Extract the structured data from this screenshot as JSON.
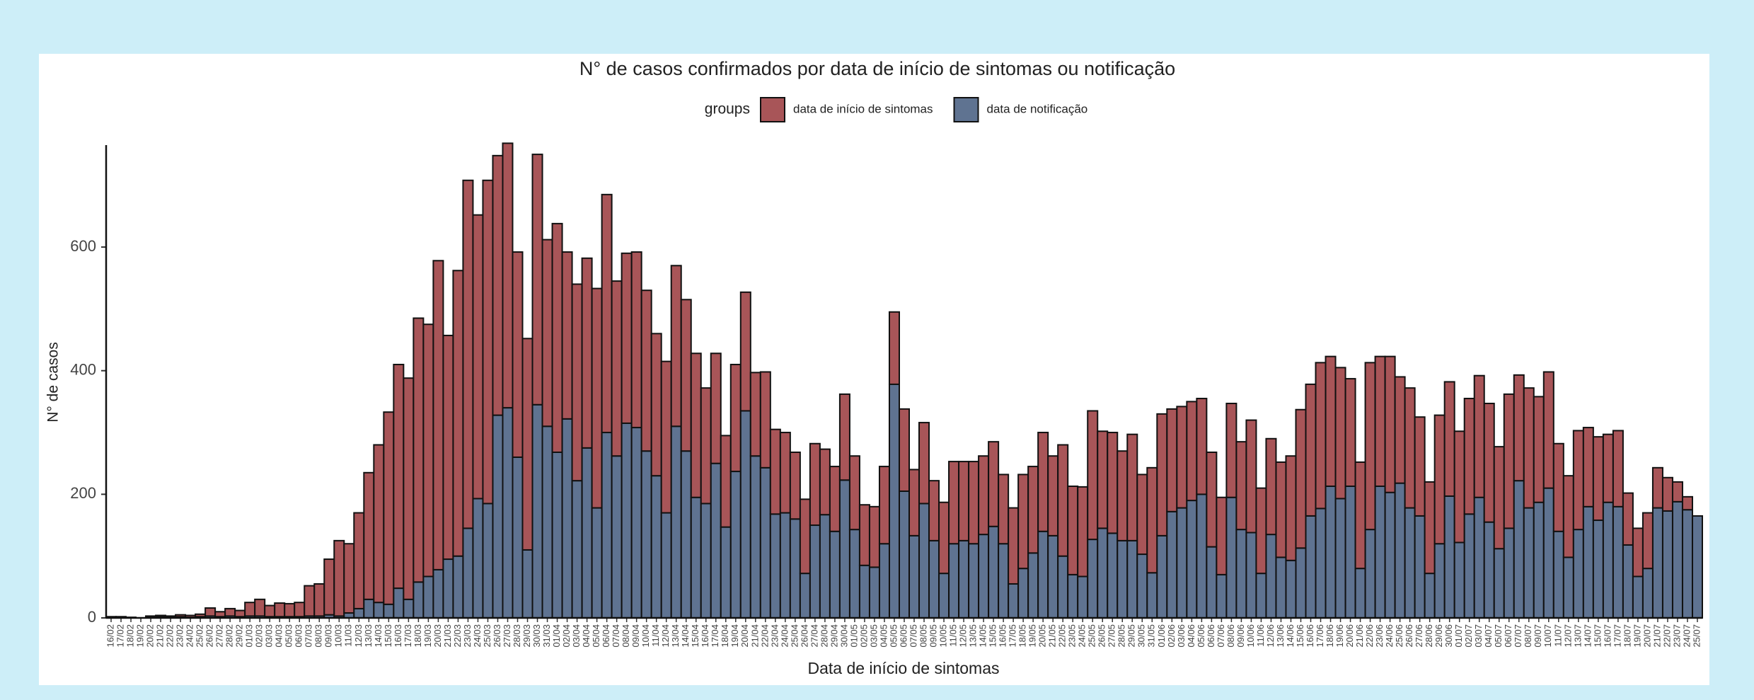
{
  "chart_data": {
    "type": "bar",
    "stacked": true,
    "title": "N° de casos confirmados por data de início de sintomas ou notificação",
    "legend_title": "groups",
    "xlabel": "Data de início de sintomas",
    "ylabel": "N° de casos",
    "ylim": [
      0,
      765
    ],
    "yticks": [
      0,
      200,
      400,
      600
    ],
    "categories": [
      "16/02",
      "17/02",
      "18/02",
      "19/02",
      "20/02",
      "21/02",
      "22/02",
      "23/02",
      "24/02",
      "25/02",
      "26/02",
      "27/02",
      "28/02",
      "29/02",
      "01/03",
      "02/03",
      "03/03",
      "04/03",
      "05/03",
      "06/03",
      "07/03",
      "08/03",
      "09/03",
      "10/03",
      "11/03",
      "12/03",
      "13/03",
      "14/03",
      "15/03",
      "16/03",
      "17/03",
      "18/03",
      "19/03",
      "20/03",
      "21/03",
      "22/03",
      "23/03",
      "24/03",
      "25/03",
      "26/03",
      "27/03",
      "28/03",
      "29/03",
      "30/03",
      "31/03",
      "01/04",
      "02/04",
      "03/04",
      "04/04",
      "05/04",
      "06/04",
      "07/04",
      "08/04",
      "09/04",
      "10/04",
      "11/04",
      "12/04",
      "13/04",
      "14/04",
      "15/04",
      "16/04",
      "17/04",
      "18/04",
      "19/04",
      "20/04",
      "21/04",
      "22/04",
      "23/04",
      "24/04",
      "25/04",
      "26/04",
      "27/04",
      "28/04",
      "29/04",
      "30/04",
      "01/05",
      "02/05",
      "03/05",
      "04/05",
      "05/05",
      "06/05",
      "07/05",
      "08/05",
      "09/05",
      "10/05",
      "11/05",
      "12/05",
      "13/05",
      "14/05",
      "15/05",
      "16/05",
      "17/05",
      "18/05",
      "19/05",
      "20/05",
      "21/05",
      "22/05",
      "23/05",
      "24/05",
      "25/05",
      "26/05",
      "27/05",
      "28/05",
      "29/05",
      "30/05",
      "31/05",
      "01/06",
      "02/06",
      "03/06",
      "04/06",
      "05/06",
      "06/06",
      "07/06",
      "08/06",
      "09/06",
      "10/06",
      "11/06",
      "12/06",
      "13/06",
      "14/06",
      "15/06",
      "16/06",
      "17/06",
      "18/06",
      "19/06",
      "20/06",
      "21/06",
      "22/06",
      "23/06",
      "24/06",
      "25/06",
      "26/06",
      "27/06",
      "28/06",
      "29/06",
      "30/06",
      "01/07",
      "02/07",
      "03/07",
      "04/07",
      "05/07",
      "06/07",
      "07/07",
      "08/07",
      "09/07",
      "10/07",
      "11/07",
      "12/07",
      "13/07",
      "14/07",
      "15/07",
      "16/07",
      "17/07",
      "18/07",
      "19/07",
      "20/07",
      "21/07",
      "22/07",
      "23/07",
      "24/07",
      "25/07"
    ],
    "series": [
      {
        "name": "data de início de sintomas",
        "color": "#a85558",
        "values": [
          1,
          2,
          1,
          0,
          2,
          2,
          2,
          3,
          3,
          4,
          13,
          8,
          12,
          10,
          22,
          27,
          18,
          22,
          21,
          23,
          49,
          52,
          90,
          122,
          112,
          155,
          205,
          255,
          311,
          362,
          358,
          427,
          408,
          500,
          362,
          462,
          563,
          459,
          523,
          420,
          428,
          332,
          342,
          405,
          302,
          370,
          270,
          318,
          307,
          355,
          385,
          283,
          275,
          284,
          260,
          230,
          245,
          260,
          245,
          233,
          187,
          178,
          148,
          173,
          192,
          135,
          155,
          137,
          130,
          108,
          120,
          132,
          106,
          105,
          139,
          119,
          98,
          98,
          125,
          117,
          133,
          107,
          131,
          97,
          115,
          133,
          128,
          133,
          127,
          137,
          112,
          123,
          152,
          140,
          160,
          129,
          180,
          143,
          145,
          208,
          157,
          163,
          145,
          172,
          129,
          170,
          197,
          166,
          164,
          160,
          155,
          153,
          125,
          152,
          142,
          182,
          138,
          155,
          154,
          169,
          224,
          213,
          236,
          210,
          212,
          174,
          172,
          270,
          210,
          220,
          172,
          194,
          160,
          148,
          208,
          185,
          180,
          187,
          197,
          192,
          165,
          217,
          171,
          194,
          171,
          188,
          142,
          132,
          160,
          128,
          135,
          110,
          123,
          84,
          78,
          90,
          65,
          54,
          32,
          21,
          0
        ]
      },
      {
        "name": "data de notificação",
        "color": "#5f7391",
        "values": [
          1,
          0,
          0,
          0,
          1,
          2,
          1,
          2,
          1,
          2,
          3,
          2,
          3,
          2,
          3,
          3,
          2,
          2,
          2,
          2,
          3,
          3,
          5,
          3,
          8,
          15,
          30,
          25,
          22,
          48,
          30,
          58,
          67,
          78,
          95,
          100,
          145,
          193,
          185,
          328,
          340,
          260,
          110,
          345,
          310,
          268,
          322,
          222,
          275,
          178,
          300,
          262,
          315,
          308,
          270,
          230,
          170,
          310,
          270,
          195,
          185,
          250,
          147,
          237,
          335,
          262,
          243,
          168,
          170,
          160,
          72,
          150,
          167,
          140,
          223,
          143,
          85,
          82,
          120,
          378,
          205,
          133,
          185,
          125,
          72,
          120,
          125,
          120,
          135,
          148,
          120,
          55,
          80,
          105,
          140,
          133,
          100,
          70,
          67,
          127,
          145,
          137,
          125,
          125,
          103,
          73,
          133,
          172,
          178,
          190,
          200,
          115,
          70,
          195,
          143,
          138,
          72,
          135,
          98,
          93,
          113,
          165,
          177,
          213,
          193,
          213,
          80,
          143,
          213,
          203,
          218,
          178,
          165,
          72,
          120,
          197,
          122,
          168,
          195,
          155,
          112,
          145,
          222,
          178,
          187,
          210,
          140,
          98,
          143,
          180,
          158,
          187,
          180,
          118,
          67,
          80,
          178,
          173,
          188,
          175,
          165
        ]
      }
    ]
  }
}
